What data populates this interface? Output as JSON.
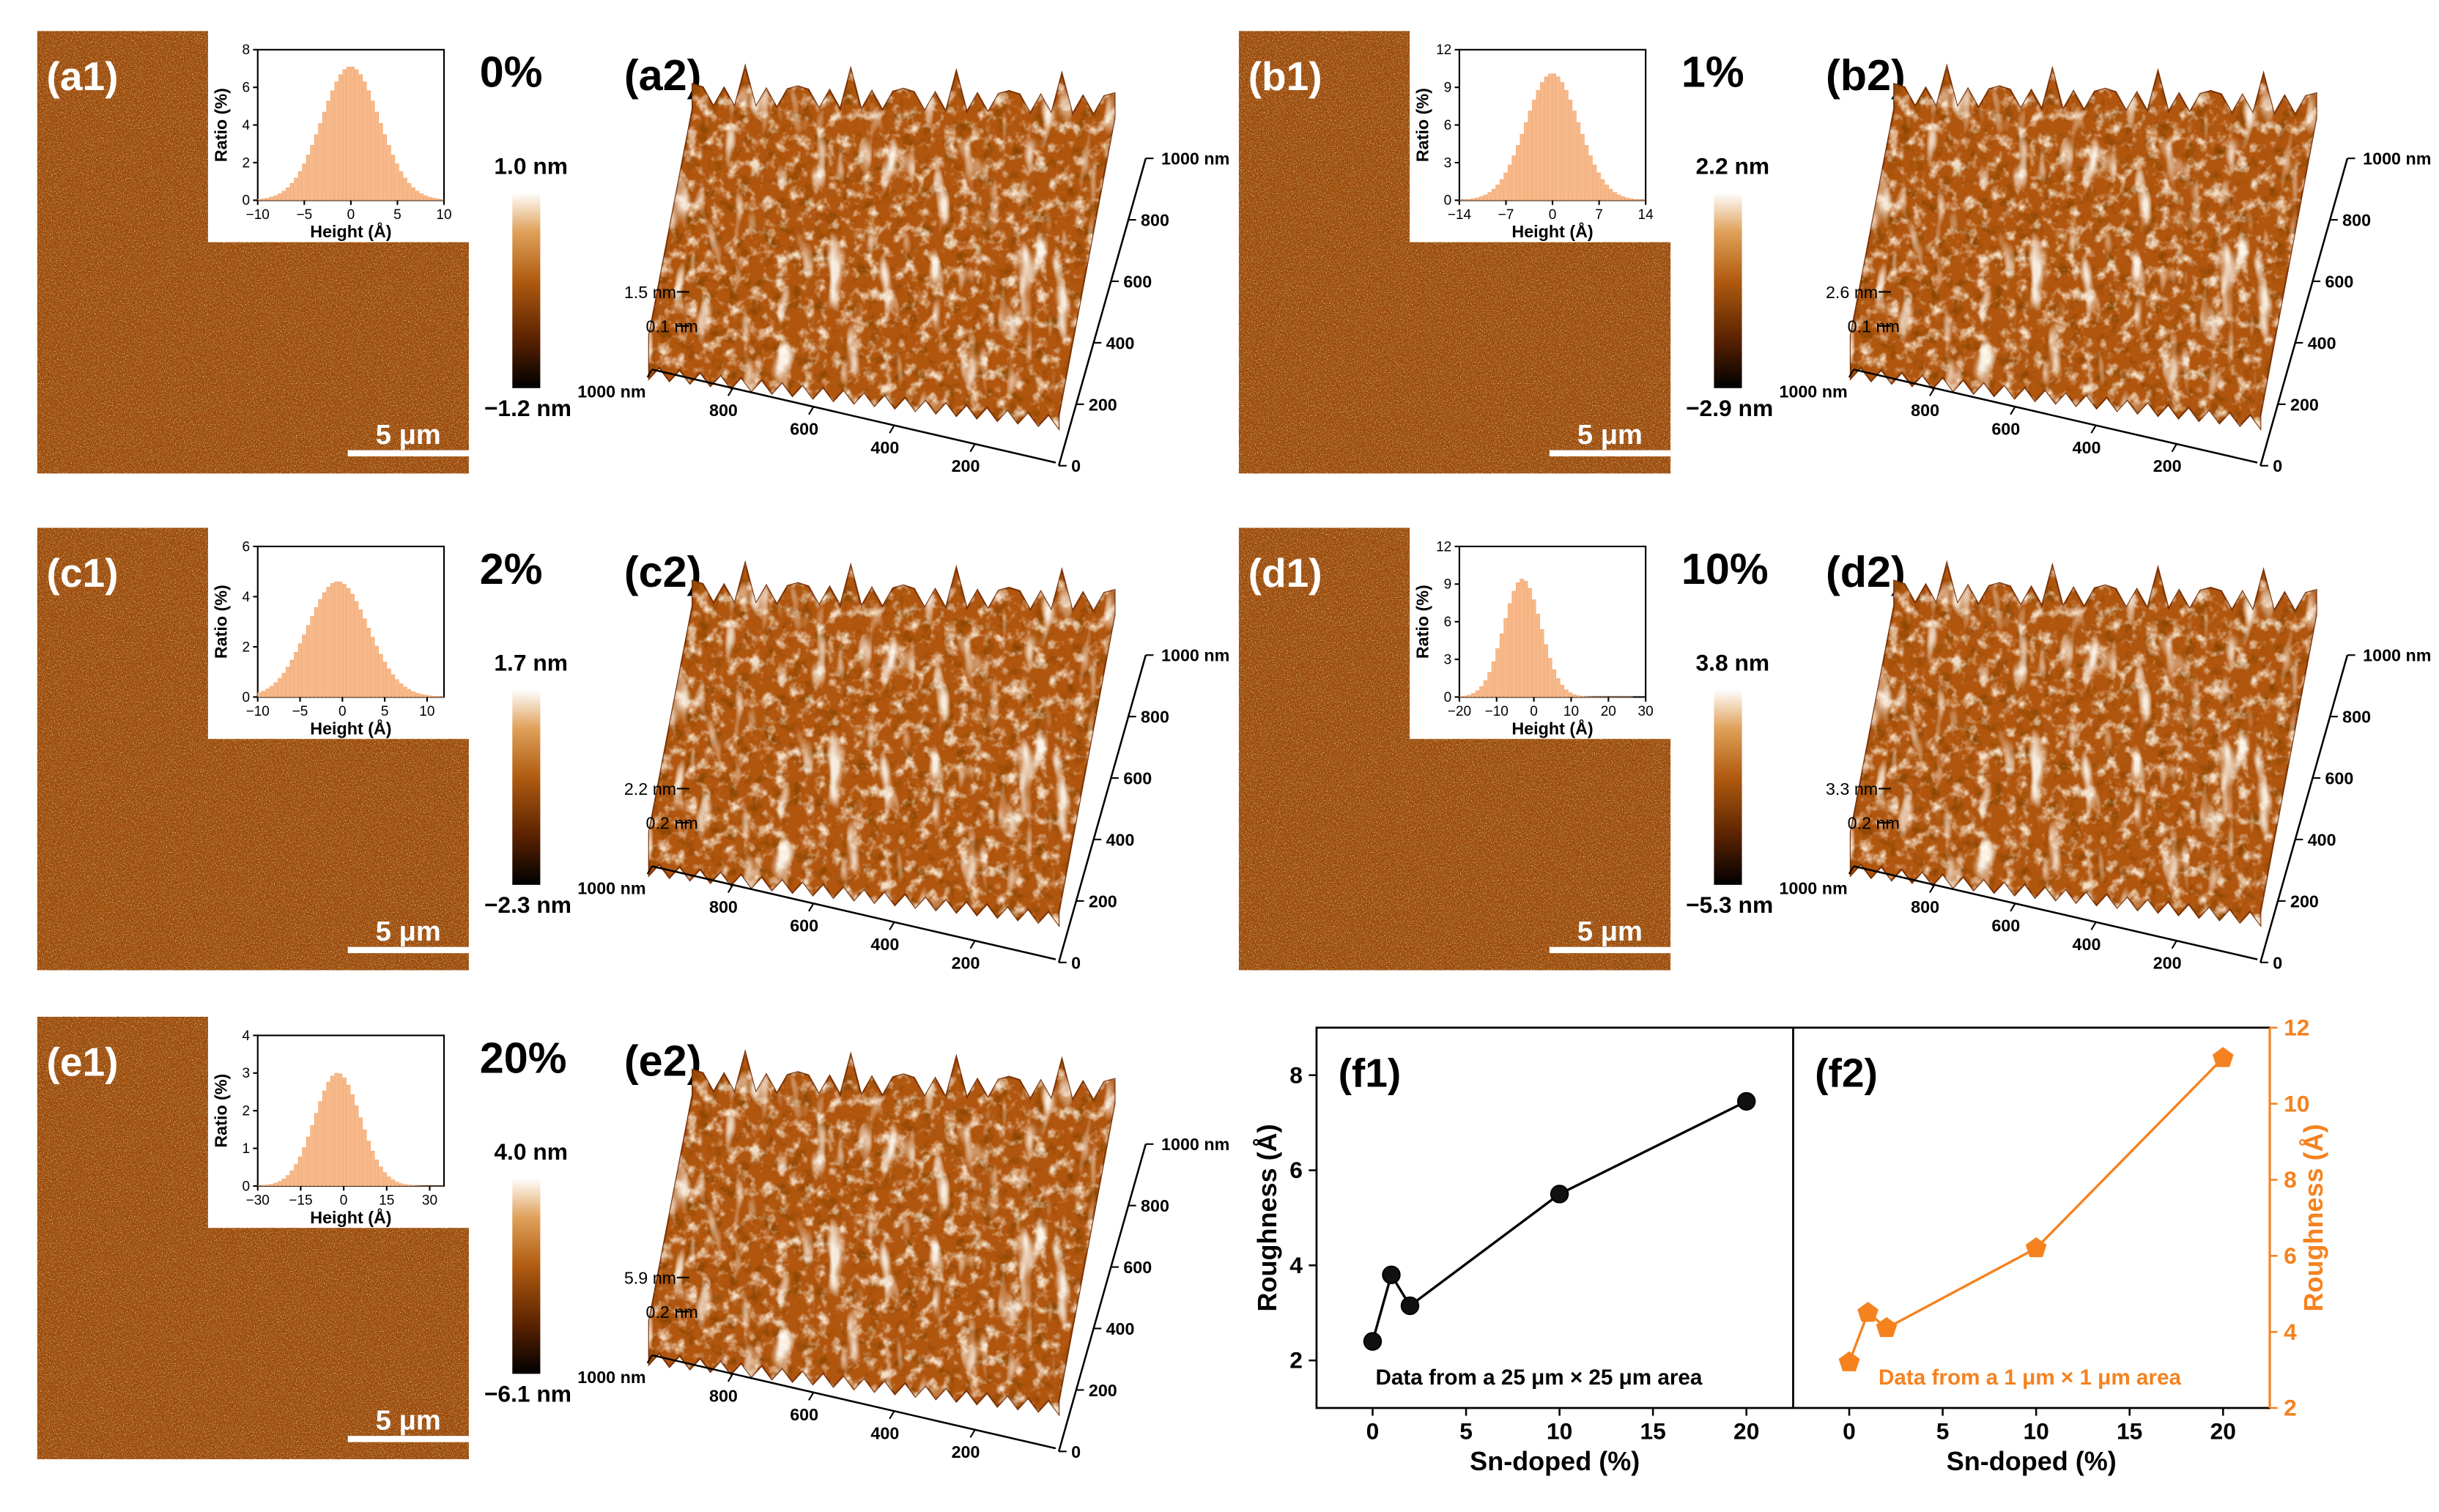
{
  "panels": [
    {
      "id": "a",
      "label1": "(a1)",
      "label2": "(a2)",
      "doping": "0%",
      "cmax": "1.0 nm",
      "cmin": "−1.2 nm",
      "zhigh": "1.5 nm",
      "zlow": "0.1 nm",
      "hist": {
        "xticks": [
          "−10",
          "−5",
          "0",
          "5",
          "10"
        ],
        "xrange": [
          -10,
          10
        ],
        "yticks": [
          "0",
          "2",
          "4",
          "6",
          "8"
        ],
        "ymax": 8,
        "sigma": 3.1,
        "peak": 7.1,
        "mu": 0.0
      }
    },
    {
      "id": "b",
      "label1": "(b1)",
      "label2": "(b2)",
      "doping": "1%",
      "cmax": "2.2 nm",
      "cmin": "−2.9 nm",
      "zhigh": "2.6 nm",
      "zlow": "0.1 nm",
      "hist": {
        "xticks": [
          "−14",
          "−7",
          "0",
          "7",
          "14"
        ],
        "xrange": [
          -14,
          14
        ],
        "yticks": [
          "0",
          "3",
          "6",
          "9",
          "12"
        ],
        "ymax": 12,
        "sigma": 4.0,
        "peak": 10.1,
        "mu": 0.0
      }
    },
    {
      "id": "c",
      "label1": "(c1)",
      "label2": "(c2)",
      "doping": "2%",
      "cmax": "1.7 nm",
      "cmin": "−2.3 nm",
      "zhigh": "2.2 nm",
      "zlow": "0.2 nm",
      "hist": {
        "xticks": [
          "−10",
          "−5",
          "0",
          "5",
          "10"
        ],
        "xrange": [
          -10,
          12
        ],
        "yticks": [
          "0",
          "2",
          "4",
          "6"
        ],
        "ymax": 6,
        "sigma": 3.6,
        "peak": 4.6,
        "mu": -0.5
      }
    },
    {
      "id": "d",
      "label1": "(d1)",
      "label2": "(d2)",
      "doping": "10%",
      "cmax": "3.8 nm",
      "cmin": "−5.3 nm",
      "zhigh": "3.3 nm",
      "zlow": "0.2 nm",
      "hist": {
        "xticks": [
          "−20",
          "−10",
          "0",
          "10",
          "20",
          "30"
        ],
        "xrange": [
          -20,
          30
        ],
        "yticks": [
          "0",
          "3",
          "6",
          "9",
          "12"
        ],
        "ymax": 12,
        "sigma": 5.0,
        "peak": 9.4,
        "mu": -3.0
      }
    },
    {
      "id": "e",
      "label1": "(e1)",
      "label2": "(e2)",
      "doping": "20%",
      "cmax": "4.0 nm",
      "cmin": "−6.1 nm",
      "zhigh": "5.9 nm",
      "zlow": "0.2 nm",
      "hist": {
        "xticks": [
          "−30",
          "−15",
          "0",
          "15",
          "30"
        ],
        "xrange": [
          -30,
          35
        ],
        "yticks": [
          "0",
          "1",
          "2",
          "3",
          "4"
        ],
        "ymax": 4,
        "sigma": 8.0,
        "peak": 3.0,
        "mu": -2.0
      }
    }
  ],
  "common": {
    "hist_ylabel": "Ratio (%)",
    "hist_xlabel": "Height (Å)",
    "scalebar": "5 μm",
    "axis_left_ticks": [
      "1000 nm",
      "800",
      "600",
      "400",
      "200"
    ],
    "axis_right_ticks": [
      "0",
      "200",
      "400",
      "600",
      "800",
      "1000 nm"
    ]
  },
  "colors": {
    "orange_series": "#f5821f",
    "black_series": "#000000",
    "afm_dark": "#3a1600",
    "afm_mid": "#a4500d",
    "afm_light": "#fff2dc"
  },
  "chart_data": [
    {
      "type": "line",
      "panel": "(f1)",
      "x": [
        0,
        1,
        2,
        10,
        20
      ],
      "y": [
        2.4,
        3.8,
        3.15,
        5.5,
        7.45
      ],
      "xlabel": "Sn-doped (%)",
      "ylabel": "Roughness (Å)",
      "xlim": [
        -3,
        22.5
      ],
      "ylim": [
        1.0,
        9.0
      ],
      "xticks": [
        "0",
        "5",
        "10",
        "15",
        "20"
      ],
      "yticks": [
        "2",
        "4",
        "6",
        "8"
      ],
      "annotation": "Data from a 25 μm × 25 μm area",
      "marker": "circle"
    },
    {
      "type": "line",
      "panel": "(f2)",
      "x": [
        0,
        1,
        2,
        10,
        20
      ],
      "y": [
        3.2,
        4.5,
        4.1,
        6.2,
        11.2
      ],
      "xlabel": "Sn-doped (%)",
      "ylabel": "Roughness (Å)",
      "xlim": [
        -3,
        22.5
      ],
      "ylim": [
        2,
        12
      ],
      "xticks": [
        "0",
        "5",
        "10",
        "15",
        "20"
      ],
      "yticks": [
        "2",
        "4",
        "6",
        "8",
        "10",
        "12"
      ],
      "annotation": "Data from a 1 μm × 1 μm area",
      "marker": "pentagon"
    }
  ]
}
